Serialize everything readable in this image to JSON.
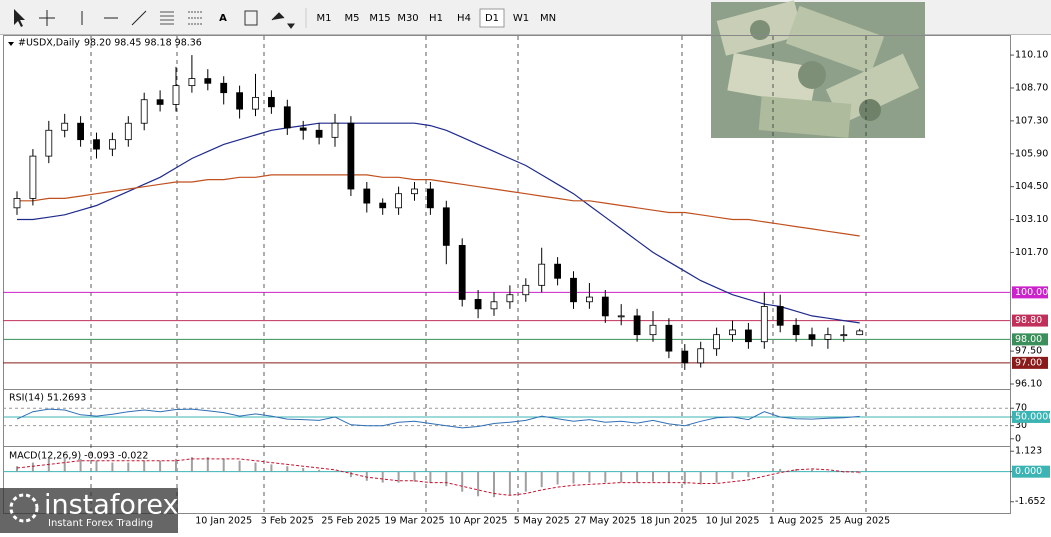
{
  "toolbar": {
    "timeframes": [
      "M1",
      "M5",
      "M15",
      "M30",
      "H1",
      "H4",
      "D1",
      "W1",
      "MN"
    ],
    "active": "D1",
    "text_tool": "A"
  },
  "watermark": {
    "brand": "instaforex",
    "tagline": "Instant Forex Trading"
  },
  "chart_data": [
    {
      "type": "candlestick",
      "title": "#USDX,Daily",
      "subtitle": "98.20 98.45 98.18 98.36",
      "categories": [
        null,
        null,
        null,
        null,
        null,
        null,
        null,
        null,
        null,
        null,
        null,
        null,
        null,
        "10 Jan 2025",
        null,
        null,
        null,
        "3 Feb 2025",
        null,
        null,
        null,
        "25 Feb 2025",
        null,
        null,
        null,
        "19 Mar 2025",
        null,
        null,
        null,
        "10 Apr 2025",
        null,
        null,
        null,
        "5 May 2025",
        null,
        null,
        null,
        "27 May 2025",
        null,
        null,
        null,
        "18 Jun 2025",
        null,
        null,
        null,
        "10 Jul 2025",
        null,
        null,
        null,
        "1 Aug 2025",
        null,
        null,
        null,
        "25 Aug 2025"
      ],
      "open": [
        103.6,
        104.0,
        105.8,
        106.9,
        107.2,
        106.5,
        106.1,
        106.5,
        107.2,
        108.2,
        108.0,
        108.8,
        109.1,
        108.9,
        108.5,
        107.8,
        108.3,
        107.9,
        107.0,
        106.9,
        106.6,
        107.2,
        104.4,
        103.8,
        103.6,
        104.2,
        104.4,
        103.6,
        102.0,
        99.7,
        99.3,
        99.6,
        99.9,
        100.3,
        101.2,
        100.6,
        99.6,
        99.8,
        99.0,
        99.0,
        98.2,
        98.6,
        97.5,
        97.0,
        97.6,
        98.2,
        98.4,
        97.9,
        99.4,
        98.6,
        98.2,
        98.0,
        98.2,
        98.2
      ],
      "high": [
        104.3,
        106.1,
        107.3,
        107.6,
        107.5,
        106.8,
        106.8,
        107.5,
        108.5,
        108.6,
        109.6,
        110.1,
        109.5,
        109.2,
        108.8,
        109.3,
        108.6,
        108.2,
        107.3,
        107.2,
        107.6,
        107.5,
        104.7,
        104.0,
        104.5,
        104.7,
        104.7,
        103.9,
        102.3,
        100.1,
        100.0,
        100.3,
        100.6,
        101.9,
        101.5,
        100.9,
        100.4,
        100.1,
        99.5,
        99.3,
        99.2,
        98.9,
        97.8,
        97.9,
        98.5,
        98.8,
        98.7,
        100.0,
        99.9,
        98.9,
        98.5,
        98.5,
        98.6,
        98.45
      ],
      "low": [
        103.3,
        103.7,
        105.5,
        106.6,
        106.2,
        105.7,
        105.8,
        106.2,
        106.9,
        107.7,
        107.7,
        108.5,
        108.6,
        108.0,
        107.4,
        107.5,
        107.6,
        106.7,
        106.5,
        106.3,
        106.2,
        104.1,
        103.4,
        103.3,
        103.3,
        103.9,
        103.3,
        101.2,
        99.4,
        98.9,
        99.0,
        99.3,
        99.6,
        100.0,
        100.3,
        99.3,
        99.3,
        98.7,
        98.6,
        97.9,
        97.9,
        97.2,
        96.7,
        96.8,
        97.3,
        97.9,
        97.6,
        97.6,
        98.3,
        97.9,
        97.7,
        97.6,
        97.9,
        98.18
      ],
      "close": [
        104.0,
        105.8,
        106.9,
        107.2,
        106.5,
        106.1,
        106.5,
        107.2,
        108.2,
        108.0,
        108.8,
        109.1,
        108.9,
        108.5,
        107.8,
        108.3,
        107.9,
        107.0,
        106.9,
        106.6,
        107.2,
        104.4,
        103.8,
        103.6,
        104.2,
        104.4,
        103.6,
        102.0,
        99.7,
        99.3,
        99.6,
        99.9,
        100.3,
        101.2,
        100.6,
        99.6,
        99.8,
        99.0,
        99.0,
        98.2,
        98.6,
        97.5,
        97.0,
        97.6,
        98.2,
        98.4,
        97.9,
        99.4,
        98.6,
        98.2,
        98.0,
        98.2,
        98.2,
        98.36
      ],
      "overlays": [
        {
          "color": "#1e2a8c",
          "values": [
            103.1,
            103.1,
            103.2,
            103.3,
            103.5,
            103.7,
            104.0,
            104.3,
            104.6,
            104.9,
            105.3,
            105.7,
            106.0,
            106.3,
            106.5,
            106.7,
            106.9,
            107.0,
            107.1,
            107.2,
            107.2,
            107.2,
            107.2,
            107.2,
            107.2,
            107.2,
            107.1,
            106.9,
            106.6,
            106.3,
            106.0,
            105.7,
            105.4,
            105.0,
            104.6,
            104.2,
            103.7,
            103.2,
            102.7,
            102.2,
            101.7,
            101.3,
            100.9,
            100.5,
            100.2,
            99.9,
            99.7,
            99.5,
            99.4,
            99.2,
            99.0,
            98.9,
            98.8,
            98.7
          ]
        },
        {
          "color": "#c0501e",
          "values": [
            103.9,
            103.9,
            104.0,
            104.0,
            104.1,
            104.2,
            104.3,
            104.4,
            104.5,
            104.6,
            104.7,
            104.7,
            104.8,
            104.8,
            104.9,
            104.9,
            105.0,
            105.0,
            105.0,
            105.0,
            105.0,
            105.0,
            105.0,
            104.9,
            104.9,
            104.8,
            104.8,
            104.7,
            104.6,
            104.5,
            104.4,
            104.3,
            104.2,
            104.1,
            104.0,
            103.9,
            103.9,
            103.8,
            103.7,
            103.6,
            103.5,
            103.4,
            103.4,
            103.3,
            103.2,
            103.1,
            103.1,
            103.0,
            102.9,
            102.8,
            102.7,
            102.6,
            102.5,
            102.4
          ]
        }
      ],
      "levels": [
        {
          "value": 100,
          "label": "100.00",
          "color": "#cc22cc"
        },
        {
          "value": 98.8,
          "label": "98.80",
          "color": "#c0305a"
        },
        {
          "value": 98,
          "label": "98.00",
          "color": "#3a8f5a"
        },
        {
          "value": 97,
          "label": "97.00",
          "color": "#8b1a1a"
        }
      ],
      "ylim": [
        95.93,
        110.87
      ],
      "yticks": [
        {
          "value": 110.1,
          "label": "110.10"
        },
        {
          "value": 108.7,
          "label": "108.70"
        },
        {
          "value": 107.3,
          "label": "107.30"
        },
        {
          "value": 105.9,
          "label": "105.90"
        },
        {
          "value": 104.5,
          "label": "104.50"
        },
        {
          "value": 103.1,
          "label": "103.10"
        },
        {
          "value": 101.7,
          "label": "101.70"
        },
        {
          "value": 97.5,
          "label": "97.50"
        },
        {
          "value": 96.1,
          "label": "96.10"
        }
      ]
    },
    {
      "type": "line",
      "title": "RSI(14) 51.2693",
      "color": "#2f6fb5",
      "values": [
        45,
        62,
        68,
        66,
        55,
        52,
        56,
        62,
        66,
        62,
        67,
        68,
        64,
        60,
        52,
        57,
        52,
        45,
        44,
        42,
        50,
        32,
        30,
        30,
        38,
        40,
        35,
        30,
        25,
        28,
        35,
        38,
        42,
        52,
        46,
        40,
        44,
        38,
        40,
        36,
        42,
        34,
        30,
        40,
        48,
        50,
        44,
        62,
        50,
        46,
        45,
        47,
        48,
        51.2693
      ],
      "ylim": [
        -14.3,
        109.5
      ],
      "yticks": [
        70,
        30,
        0,
        {
          "value": 50,
          "label": "50.0000"
        }
      ]
    },
    {
      "type": "bar",
      "title": "MACD(12,26,9) -0.093 -0.022",
      "color": "#a0a0a0",
      "values": [
        0.3,
        0.5,
        0.7,
        0.8,
        0.7,
        0.6,
        0.5,
        0.5,
        0.6,
        0.6,
        0.7,
        0.8,
        0.8,
        0.7,
        0.6,
        0.5,
        0.4,
        0.3,
        0.2,
        0.1,
        0.05,
        -0.3,
        -0.5,
        -0.6,
        -0.6,
        -0.55,
        -0.6,
        -0.8,
        -1.1,
        -1.35,
        -1.4,
        -1.3,
        -1.1,
        -0.85,
        -0.7,
        -0.65,
        -0.6,
        -0.6,
        -0.6,
        -0.6,
        -0.55,
        -0.6,
        -0.7,
        -0.7,
        -0.6,
        -0.4,
        -0.3,
        0.0,
        0.15,
        0.15,
        0.1,
        0.0,
        -0.05,
        -0.093
      ],
      "signal": {
        "color": "#c8102e",
        "values": [
          0.2,
          0.3,
          0.4,
          0.5,
          0.6,
          0.6,
          0.6,
          0.6,
          0.6,
          0.6,
          0.6,
          0.7,
          0.7,
          0.7,
          0.7,
          0.6,
          0.5,
          0.4,
          0.3,
          0.2,
          0.1,
          -0.1,
          -0.3,
          -0.4,
          -0.5,
          -0.5,
          -0.6,
          -0.6,
          -0.8,
          -1.0,
          -1.2,
          -1.3,
          -1.2,
          -1.0,
          -0.85,
          -0.75,
          -0.7,
          -0.65,
          -0.6,
          -0.6,
          -0.6,
          -0.6,
          -0.6,
          -0.65,
          -0.65,
          -0.55,
          -0.45,
          -0.25,
          -0.05,
          0.1,
          0.15,
          0.1,
          0.0,
          -0.022
        ]
      },
      "ylim": [
        -2.27,
        1.3
      ],
      "yticks": [
        1.123,
        {
          "value": 0,
          "label": "0.000"
        },
        -1.652
      ]
    }
  ]
}
